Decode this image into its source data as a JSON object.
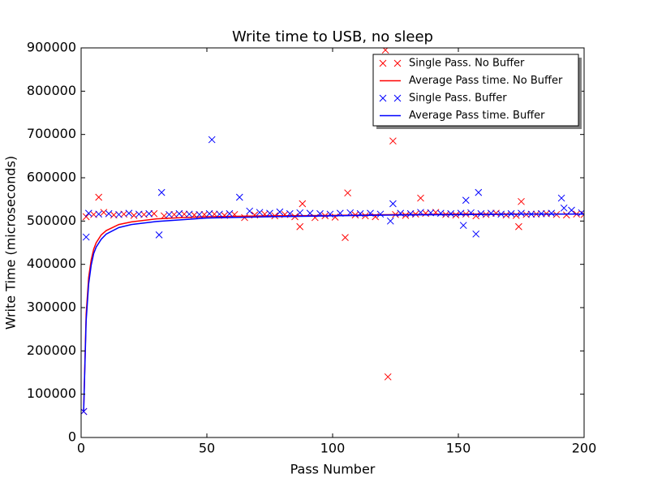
{
  "chart_data": {
    "type": "scatter-line",
    "title": "Write time to USB, no sleep",
    "xlabel": "Pass Number",
    "ylabel": "Write Time (microseconds)",
    "xlim": [
      0,
      200
    ],
    "xticks": [
      0,
      50,
      100,
      150,
      200
    ],
    "ylim": [
      0,
      900000
    ],
    "yticks": [
      0,
      100000,
      200000,
      300000,
      400000,
      500000,
      600000,
      700000,
      800000,
      900000
    ],
    "legend": "upper right",
    "series": [
      {
        "name": "Single Pass. No Buffer",
        "color": "#ff0000",
        "mode": "markers",
        "x": [
          1,
          2,
          5,
          7,
          9,
          13,
          17,
          21,
          25,
          29,
          33,
          37,
          41,
          45,
          49,
          53,
          57,
          61,
          65,
          69,
          73,
          77,
          81,
          85,
          87,
          88,
          93,
          97,
          101,
          105,
          106,
          109,
          113,
          117,
          121,
          122,
          124,
          125,
          129,
          133,
          135,
          137,
          141,
          145,
          149,
          153,
          157,
          161,
          165,
          169,
          173,
          174,
          175,
          177,
          181,
          185,
          189,
          193,
          197,
          200
        ],
        "values": [
          60000,
          510000,
          515000,
          555000,
          520000,
          514000,
          516000,
          513000,
          515000,
          517000,
          512000,
          515000,
          516000,
          514000,
          515000,
          516000,
          513000,
          515000,
          508000,
          514000,
          516000,
          512000,
          515000,
          510000,
          487000,
          540000,
          508000,
          512000,
          509000,
          462000,
          565000,
          514000,
          512000,
          510000,
          895000,
          140000,
          685000,
          515000,
          513000,
          516000,
          553000,
          518000,
          520000,
          515000,
          514000,
          516000,
          512000,
          515000,
          518000,
          514000,
          513000,
          487000,
          545000,
          515000,
          516000,
          517000,
          515000,
          514000,
          516000,
          515000
        ]
      },
      {
        "name": "Average Pass time. No Buffer",
        "color": "#ff0000",
        "mode": "line",
        "x": [
          1,
          2,
          3,
          4,
          5,
          6,
          8,
          10,
          15,
          20,
          30,
          40,
          50,
          75,
          100,
          125,
          150,
          175,
          200
        ],
        "values": [
          60000,
          285000,
          370000,
          410000,
          435000,
          450000,
          468000,
          478000,
          492000,
          498000,
          505000,
          508000,
          510000,
          512000,
          513000,
          515000,
          516000,
          516000,
          516000
        ]
      },
      {
        "name": "Single Pass. Buffer",
        "color": "#0000ff",
        "mode": "markers",
        "x": [
          1,
          2,
          3,
          7,
          11,
          15,
          19,
          23,
          27,
          31,
          32,
          35,
          39,
          43,
          47,
          51,
          52,
          55,
          59,
          63,
          67,
          71,
          75,
          79,
          83,
          87,
          91,
          95,
          99,
          103,
          107,
          111,
          115,
          119,
          123,
          124,
          127,
          131,
          135,
          139,
          143,
          147,
          151,
          152,
          153,
          155,
          157,
          158,
          159,
          163,
          167,
          171,
          175,
          179,
          183,
          187,
          191,
          192,
          195,
          199
        ],
        "values": [
          60000,
          463000,
          518000,
          516000,
          517000,
          515000,
          518000,
          516000,
          517000,
          468000,
          566000,
          515000,
          517000,
          516000,
          515000,
          517000,
          688000,
          516000,
          517000,
          555000,
          523000,
          520000,
          518000,
          521000,
          517000,
          519000,
          518000,
          517000,
          516000,
          518000,
          519000,
          517000,
          518000,
          516000,
          500000,
          540000,
          518000,
          517000,
          520000,
          519000,
          518000,
          517000,
          518000,
          490000,
          548000,
          519000,
          470000,
          566000,
          517000,
          518000,
          516000,
          517000,
          518000,
          516000,
          517000,
          518000,
          553000,
          530000,
          525000,
          519000
        ]
      },
      {
        "name": "Average Pass time. Buffer",
        "color": "#0000ff",
        "mode": "line",
        "x": [
          1,
          2,
          3,
          4,
          5,
          6,
          8,
          10,
          15,
          20,
          30,
          40,
          50,
          75,
          100,
          125,
          150,
          175,
          200
        ],
        "values": [
          60000,
          270000,
          355000,
          398000,
          425000,
          440000,
          458000,
          470000,
          485000,
          492000,
          499000,
          503000,
          507000,
          510000,
          512000,
          514000,
          515000,
          516000,
          516000
        ]
      }
    ]
  }
}
